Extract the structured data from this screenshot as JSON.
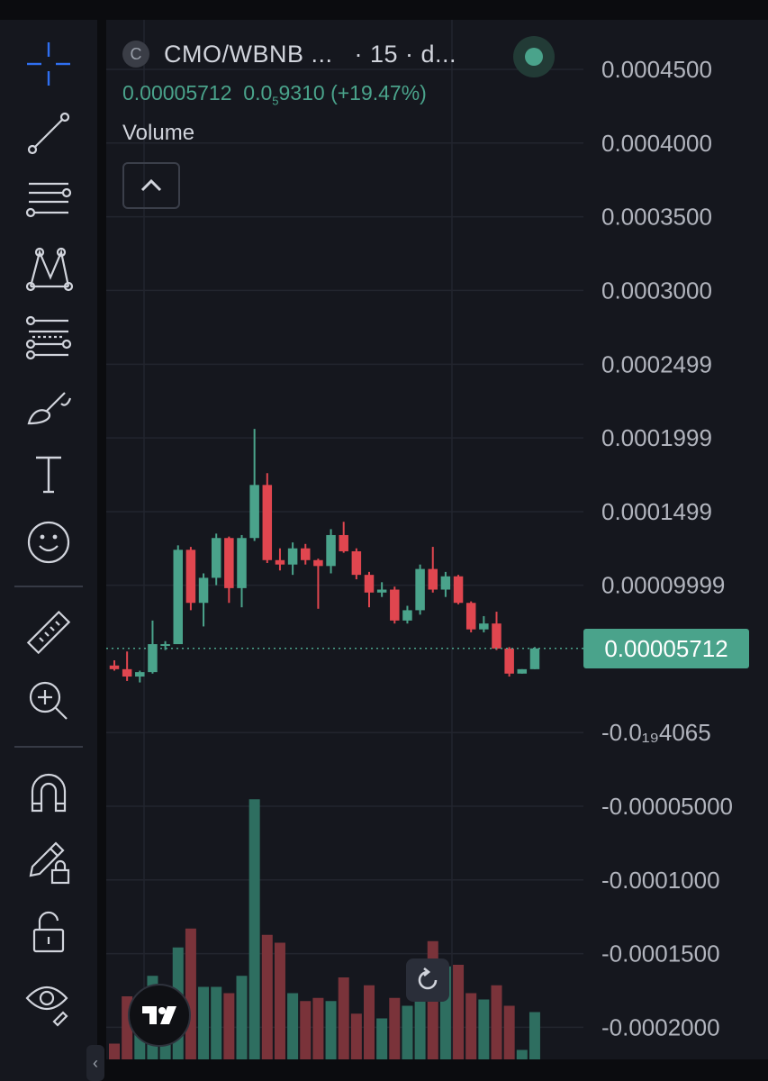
{
  "legend": {
    "symbol_logo": "C",
    "symbol": "CMO/WBNB ...",
    "interval": "· 15 · d...",
    "last_price": "0.00005712",
    "change_prefix": "0.0",
    "change_sub": "5",
    "change_rest": "9310 (+19.47%)",
    "volume_label": "Volume"
  },
  "last_price_tag": "0.00005712",
  "toolbar": {
    "items": [
      {
        "name": "crosshair-icon"
      },
      {
        "name": "trend-line-icon"
      },
      {
        "name": "horizontal-lines-icon"
      },
      {
        "name": "pattern-icon"
      },
      {
        "name": "fib-retracement-icon"
      },
      {
        "name": "brush-icon"
      },
      {
        "name": "text-tool-icon"
      },
      {
        "name": "emoji-icon"
      },
      {
        "name": "ruler-icon"
      },
      {
        "name": "zoom-in-icon"
      },
      {
        "name": "magnet-icon"
      },
      {
        "name": "lock-drawing-icon"
      },
      {
        "name": "unlock-icon"
      },
      {
        "name": "eye-icon"
      }
    ]
  },
  "colors": {
    "up": "#4aa38b",
    "down": "#e0464f",
    "up_volume": "#2e6e60",
    "down_volume": "#7a333a",
    "grid": "#22252e",
    "axis_text": "#b2b5be"
  },
  "chart_data": {
    "type": "candlestick",
    "symbol": "CMO/WBNB",
    "y_tick_labels": [
      {
        "label": "0.0004500",
        "value": 0.00045
      },
      {
        "label": "0.0004000",
        "value": 0.0004
      },
      {
        "label": "0.0003500",
        "value": 0.00035
      },
      {
        "label": "0.0003000",
        "value": 0.0003
      },
      {
        "label": "0.0002499",
        "value": 0.0002499
      },
      {
        "label": "0.0001999",
        "value": 0.0001999
      },
      {
        "label": "0.0001499",
        "value": 0.0001499
      },
      {
        "label": "0.00009999",
        "value": 9.999e-05
      },
      {
        "label": "-0.0₁₉4065",
        "value": 0
      },
      {
        "label": "-0.00005000",
        "value": -5e-05
      },
      {
        "label": "-0.0001000",
        "value": -0.0001
      },
      {
        "label": "-0.0001500",
        "value": -0.00015
      },
      {
        "label": "-0.0002000",
        "value": -0.0002
      }
    ],
    "candles": [
      {
        "o": 4.55e-05,
        "h": 4.9e-05,
        "l": 4.2e-05,
        "c": 4.3e-05
      },
      {
        "o": 4.3e-05,
        "h": 5.5e-05,
        "l": 3.5e-05,
        "c": 3.8e-05
      },
      {
        "o": 3.8e-05,
        "h": 4.2e-05,
        "l": 3.4e-05,
        "c": 4.1e-05
      },
      {
        "o": 4.1e-05,
        "h": 7.6e-05,
        "l": 4e-05,
        "c": 6e-05
      },
      {
        "o": 6e-05,
        "h": 6.2e-05,
        "l": 5.6e-05,
        "c": 6e-05
      },
      {
        "o": 6e-05,
        "h": 0.000127,
        "l": 6e-05,
        "c": 0.000124
      },
      {
        "o": 0.000124,
        "h": 0.000126,
        "l": 8.3e-05,
        "c": 8.8e-05
      },
      {
        "o": 8.8e-05,
        "h": 0.000108,
        "l": 7.2e-05,
        "c": 0.000105
      },
      {
        "o": 0.000105,
        "h": 0.000135,
        "l": 0.0001,
        "c": 0.000132
      },
      {
        "o": 0.000132,
        "h": 0.000133,
        "l": 8.8e-05,
        "c": 9.8e-05
      },
      {
        "o": 9.8e-05,
        "h": 0.000134,
        "l": 8.5e-05,
        "c": 0.000132
      },
      {
        "o": 0.000132,
        "h": 0.000206,
        "l": 0.00013,
        "c": 0.000168
      },
      {
        "o": 0.000168,
        "h": 0.000176,
        "l": 0.000115,
        "c": 0.000117
      },
      {
        "o": 0.000117,
        "h": 0.000125,
        "l": 0.00011,
        "c": 0.000114
      },
      {
        "o": 0.000114,
        "h": 0.000129,
        "l": 0.000107,
        "c": 0.000125
      },
      {
        "o": 0.000125,
        "h": 0.000128,
        "l": 0.000114,
        "c": 0.000117
      },
      {
        "o": 0.000117,
        "h": 0.000118,
        "l": 8.4e-05,
        "c": 0.000113
      },
      {
        "o": 0.000113,
        "h": 0.000138,
        "l": 0.000108,
        "c": 0.000134
      },
      {
        "o": 0.000134,
        "h": 0.000143,
        "l": 0.000122,
        "c": 0.000123
      },
      {
        "o": 0.000123,
        "h": 0.000125,
        "l": 0.000104,
        "c": 0.000107
      },
      {
        "o": 0.000107,
        "h": 0.000109,
        "l": 8.5e-05,
        "c": 9.5e-05
      },
      {
        "o": 9.5e-05,
        "h": 0.000102,
        "l": 9.2e-05,
        "c": 9.7e-05
      },
      {
        "o": 9.7e-05,
        "h": 9.9e-05,
        "l": 7.4e-05,
        "c": 7.6e-05
      },
      {
        "o": 7.6e-05,
        "h": 8.6e-05,
        "l": 7.4e-05,
        "c": 8.3e-05
      },
      {
        "o": 8.3e-05,
        "h": 0.000114,
        "l": 8e-05,
        "c": 0.000111
      },
      {
        "o": 0.000111,
        "h": 0.000126,
        "l": 9.5e-05,
        "c": 9.7e-05
      },
      {
        "o": 9.7e-05,
        "h": 0.000109,
        "l": 9.2e-05,
        "c": 0.000106
      },
      {
        "o": 0.000106,
        "h": 0.000107,
        "l": 8.7e-05,
        "c": 8.8e-05
      },
      {
        "o": 8.8e-05,
        "h": 8.9e-05,
        "l": 6.8e-05,
        "c": 7e-05
      },
      {
        "o": 7e-05,
        "h": 7.9e-05,
        "l": 6.8e-05,
        "c": 7.4e-05
      },
      {
        "o": 7.4e-05,
        "h": 8.2e-05,
        "l": 5.6e-05,
        "c": 5.7e-05
      },
      {
        "o": 5.7e-05,
        "h": 5.8e-05,
        "l": 3.8e-05,
        "c": 4e-05
      },
      {
        "o": 4e-05,
        "h": 4.3e-05,
        "l": 4e-05,
        "c": 4.3e-05
      },
      {
        "o": 4.3e-05,
        "h": 5.8e-05,
        "l": 4.3e-05,
        "c": 5.71e-05
      }
    ],
    "volumes": [
      0.1,
      0.4,
      0.4,
      0.53,
      0.36,
      0.71,
      0.83,
      0.46,
      0.46,
      0.42,
      0.53,
      1.65,
      0.79,
      0.74,
      0.42,
      0.37,
      0.39,
      0.37,
      0.52,
      0.29,
      0.47,
      0.26,
      0.39,
      0.34,
      0.55,
      0.75,
      0.59,
      0.6,
      0.42,
      0.38,
      0.47,
      0.34,
      0.06,
      0.3
    ],
    "last_price": 5.712e-05
  }
}
